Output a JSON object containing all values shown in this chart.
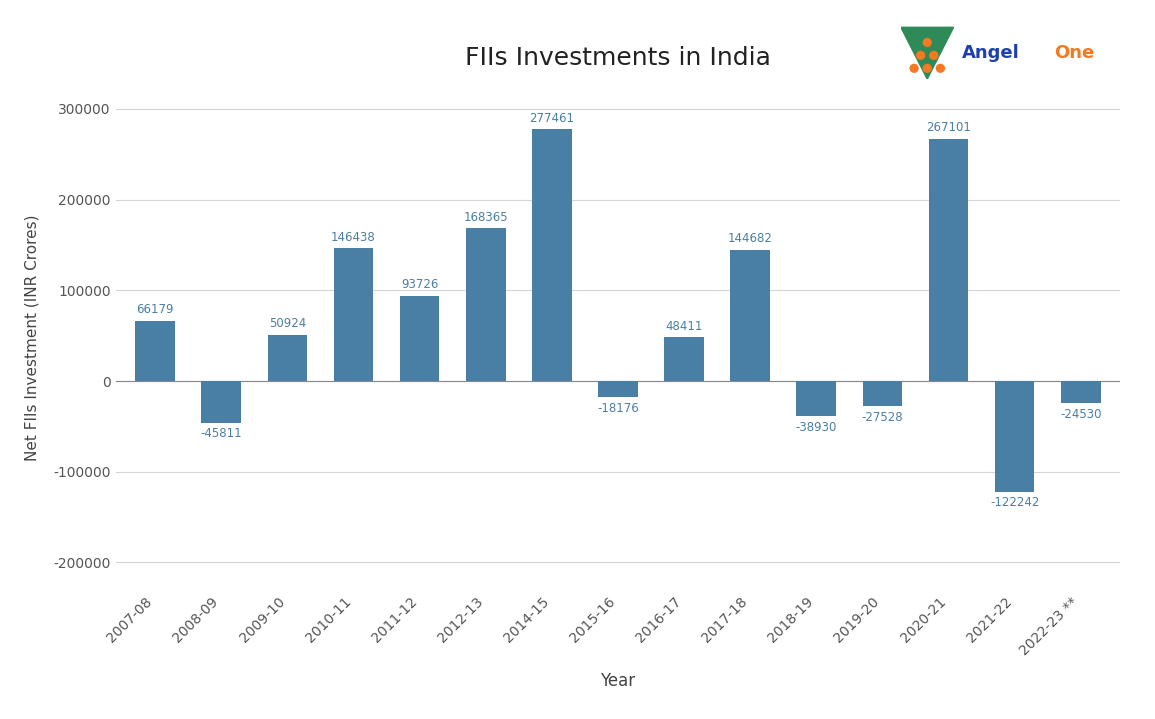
{
  "title": "FIIs Investments in India",
  "xlabel": "Year",
  "ylabel": "Net FIIs Investment (INR Crores)",
  "categories": [
    "2007-08",
    "2008-09",
    "2009-10",
    "2010-11",
    "2011-12",
    "2012-13",
    "2014-15",
    "2015-16",
    "2016-17",
    "2017-18",
    "2018-19",
    "2019-20",
    "2020-21",
    "2021-22",
    "2022-23 **"
  ],
  "values": [
    66179,
    -45811,
    50924,
    146438,
    93726,
    168365,
    277461,
    -18176,
    48411,
    144682,
    -38930,
    -27528,
    267101,
    -122242,
    -24530
  ],
  "bar_color": "#4a7fa5",
  "background_color": "#ffffff",
  "label_color": "#4a7fa5",
  "ylim": [
    -230000,
    325000
  ],
  "yticks": [
    -200000,
    -100000,
    0,
    100000,
    200000,
    300000
  ],
  "title_fontsize": 18,
  "label_fontsize": 11,
  "tick_fontsize": 10,
  "value_fontsize": 8.5,
  "grid_color": "#d5d5d5",
  "angel_blue": "#1e3fae",
  "angel_orange": "#f47920",
  "angel_green": "#2e8b57"
}
